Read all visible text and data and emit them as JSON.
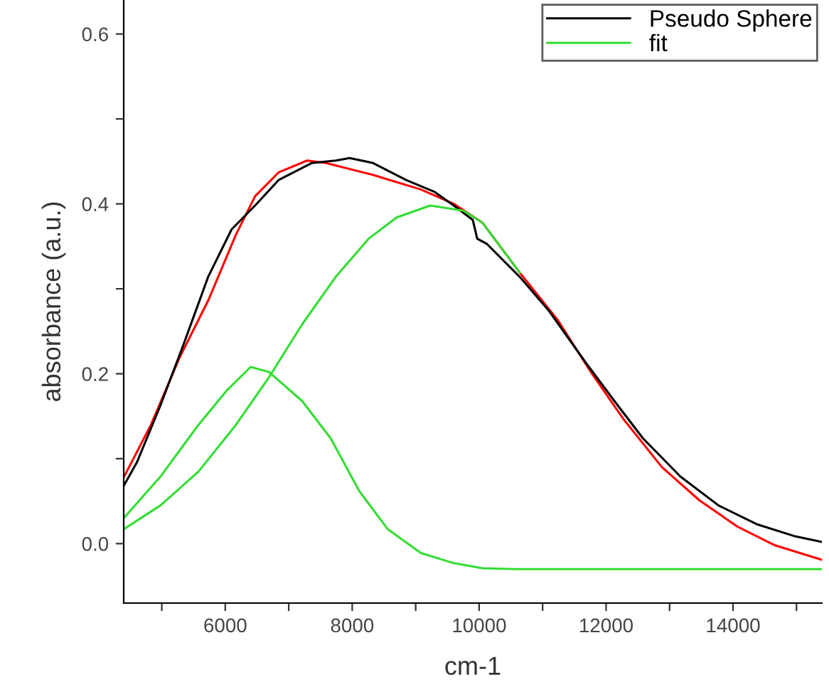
{
  "chart_data": {
    "type": "line",
    "xlabel": "cm-1",
    "ylabel": "absorbance (a.u.)",
    "xlim": [
      4400,
      15400
    ],
    "ylim": [
      -0.07,
      0.64
    ],
    "xticks": [
      {
        "value": 5000,
        "label": null
      },
      6000,
      {
        "value": 7000,
        "label": null
      },
      8000,
      {
        "value": 9000,
        "label": null
      },
      10000,
      {
        "value": 11000,
        "label": null
      },
      12000,
      {
        "value": 13000,
        "label": null
      },
      14000,
      {
        "value": 15000,
        "label": null
      }
    ],
    "yticks": [
      {
        "value": 0,
        "label": "0.0"
      },
      {
        "value": 0.1,
        "label": null
      },
      0.2,
      {
        "value": 0.3,
        "label": null
      },
      0.4,
      {
        "value": 0.5,
        "label": null
      },
      0.6
    ],
    "grid": false,
    "legend": "top right",
    "marker": "none",
    "line_style": "solid",
    "series": [
      {
        "color": "#ff0000",
        "x": [
          4400,
          4830,
          5280,
          5730,
          6170,
          6470,
          6840,
          7290,
          7590,
          8330,
          9080,
          9600,
          10050,
          10640,
          11240,
          11760,
          12280,
          12880,
          13470,
          14070,
          14660,
          15400
        ],
        "values": [
          0.078,
          0.14,
          0.219,
          0.286,
          0.364,
          0.409,
          0.437,
          0.451,
          0.448,
          0.434,
          0.417,
          0.4,
          0.378,
          0.319,
          0.263,
          0.202,
          0.146,
          0.09,
          0.051,
          0.02,
          -0.002,
          -0.019
        ]
      },
      {
        "name": "Pseudo Sphere",
        "color": "#000000",
        "x": [
          4400,
          4610,
          4980,
          5350,
          5730,
          6100,
          6470,
          6840,
          7360,
          7740,
          7960,
          8330,
          8850,
          9300,
          9600,
          9900,
          9970,
          10120,
          10640,
          11090,
          11680,
          12130,
          12580,
          13170,
          13770,
          14370,
          14960,
          15400
        ],
        "values": [
          0.068,
          0.096,
          0.163,
          0.236,
          0.314,
          0.37,
          0.398,
          0.428,
          0.448,
          0.451,
          0.454,
          0.448,
          0.428,
          0.414,
          0.398,
          0.381,
          0.359,
          0.353,
          0.314,
          0.275,
          0.213,
          0.168,
          0.124,
          0.079,
          0.045,
          0.023,
          0.009,
          0.002
        ]
      },
      {
        "name": "fit",
        "color": "#33dd33",
        "x": [
          4400,
          4980,
          5580,
          6020,
          6400,
          6690,
          7210,
          7660,
          8110,
          8560,
          9080,
          9600,
          10050,
          10570,
          15400
        ],
        "values": [
          0.03,
          0.079,
          0.14,
          0.18,
          0.208,
          0.202,
          0.168,
          0.124,
          0.062,
          0.017,
          -0.011,
          -0.023,
          -0.029,
          -0.03,
          -0.03
        ]
      },
      {
        "color": "#33dd33",
        "x": [
          4400,
          4980,
          5580,
          6170,
          6690,
          7210,
          7740,
          8260,
          8700,
          9230,
          9750,
          10050,
          10640
        ],
        "values": [
          0.017,
          0.045,
          0.085,
          0.14,
          0.196,
          0.258,
          0.314,
          0.359,
          0.384,
          0.398,
          0.392,
          0.378,
          0.319
        ]
      }
    ]
  }
}
